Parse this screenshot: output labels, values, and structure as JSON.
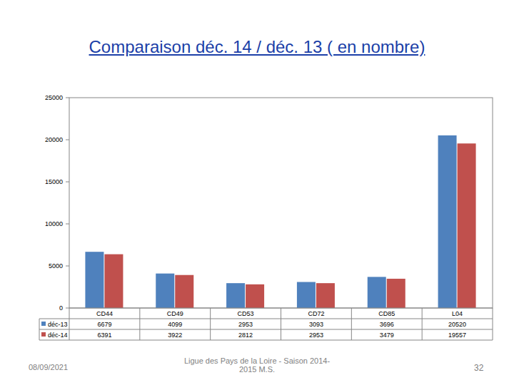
{
  "chart_data": {
    "type": "bar",
    "title": "Comparaison déc. 14 / déc. 13 ( en nombre)",
    "categories": [
      "CD44",
      "CD49",
      "CD53",
      "CD72",
      "CD85",
      "L04"
    ],
    "series": [
      {
        "name": "déc-13",
        "color": "#4f81bd",
        "values": [
          6679,
          4099,
          2953,
          3093,
          3696,
          20520
        ]
      },
      {
        "name": "déc-14",
        "color": "#c0504d",
        "values": [
          6391,
          3922,
          2812,
          2953,
          3479,
          19557
        ]
      }
    ],
    "ylim": [
      0,
      25000
    ],
    "yticks": [
      0,
      5000,
      10000,
      15000,
      20000,
      25000
    ],
    "grid": false,
    "legend": "bottom",
    "data_labels": true
  },
  "footer": {
    "date": "08/09/2021",
    "source": "Ligue des Pays de la Loire - Saison 2014-2015 M.S.",
    "page": "32"
  }
}
